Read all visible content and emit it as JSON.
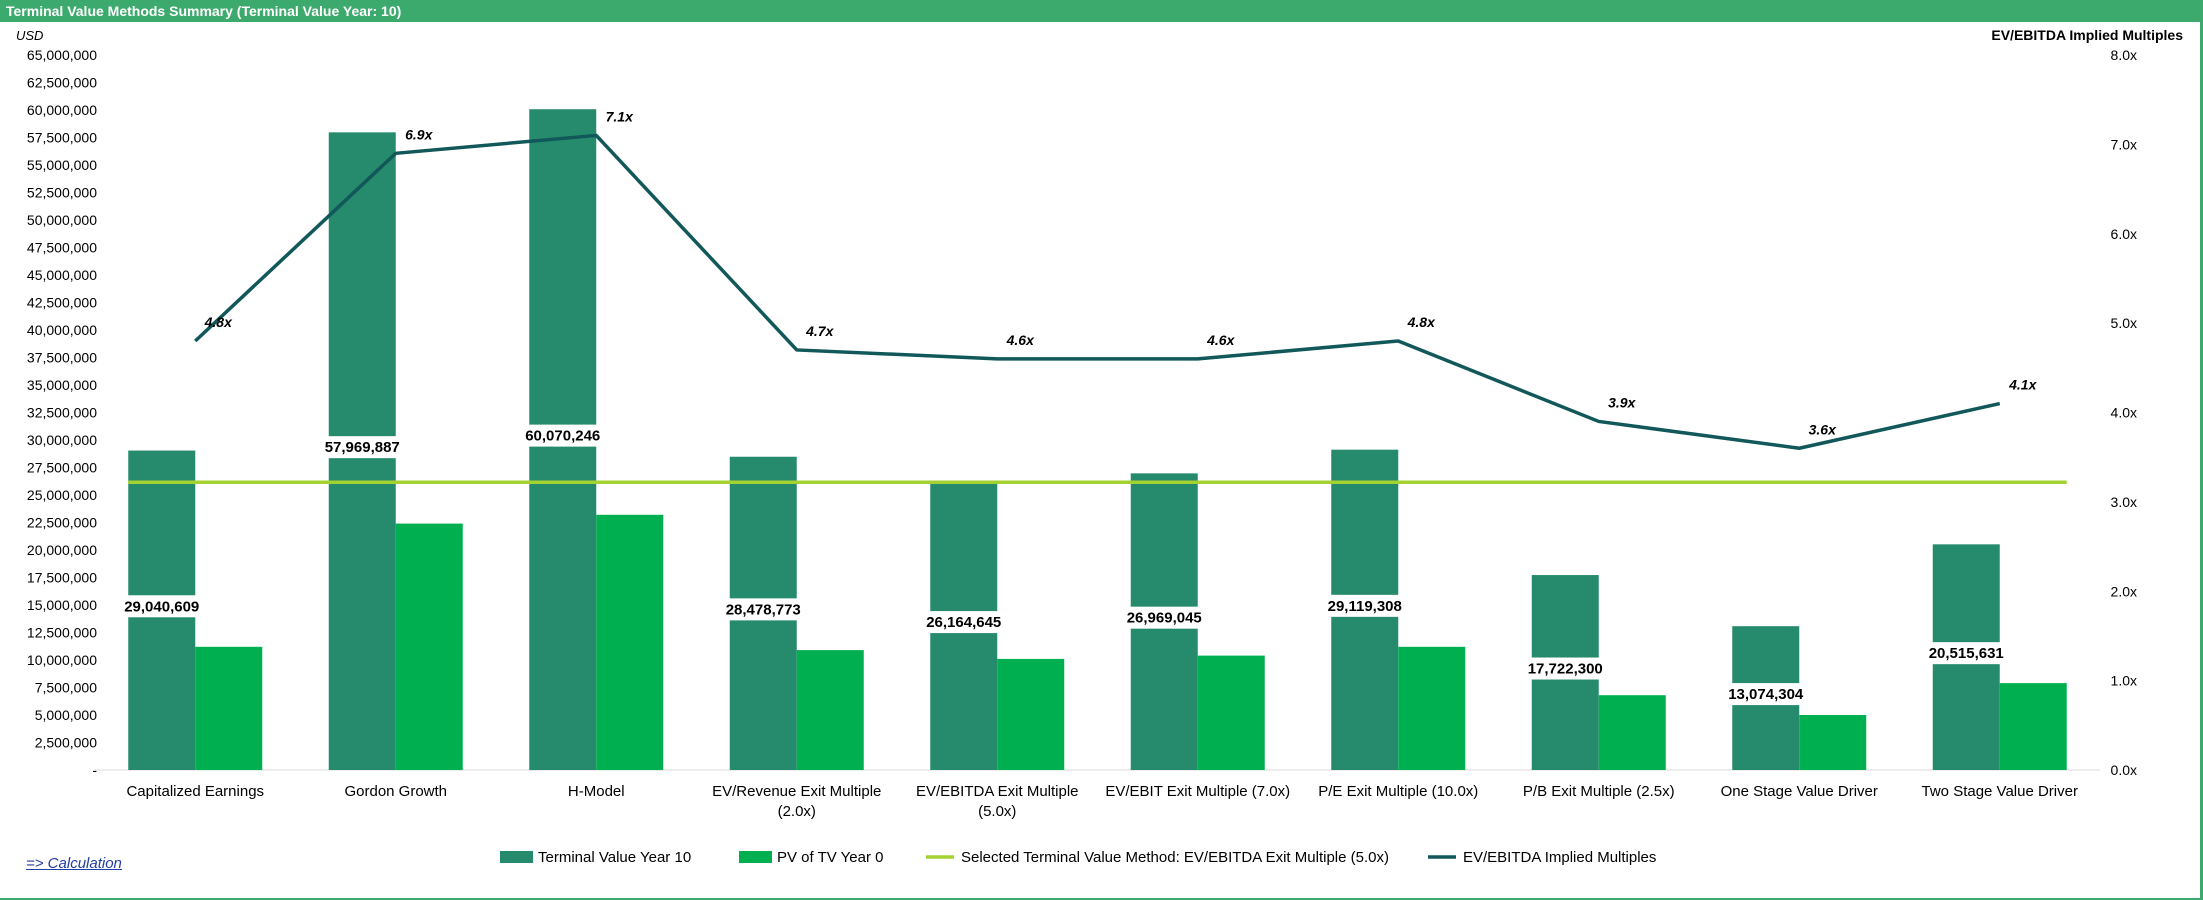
{
  "header": {
    "title": "Terminal Value Methods Summary (Terminal Value Year:  10)"
  },
  "link": {
    "label": "=> Calculation"
  },
  "colors": {
    "header_bar": "#3daa6d",
    "terminal_value": "#268b6c",
    "pv_tv": "#00b050",
    "selected_line": "#a4d233",
    "implied_line": "#12585a"
  },
  "chart_data": {
    "type": "bar",
    "title": "",
    "ylabel_left": "USD",
    "ylabel_right": "EV/EBITDA Implied Multiples",
    "ylim_left": [
      0,
      65000000
    ],
    "ylim_right": [
      0,
      8
    ],
    "grid": false,
    "legend_position": "bottom",
    "categories": [
      [
        "Capitalized Earnings"
      ],
      [
        "Gordon Growth"
      ],
      [
        "H-Model"
      ],
      [
        "EV/Revenue Exit Multiple",
        "(2.0x)"
      ],
      [
        "EV/EBITDA Exit Multiple",
        "(5.0x)"
      ],
      [
        "EV/EBIT Exit Multiple (7.0x)"
      ],
      [
        "P/E Exit Multiple (10.0x)"
      ],
      [
        "P/B Exit Multiple (2.5x)"
      ],
      [
        "One Stage Value Driver"
      ],
      [
        "Two Stage Value Driver"
      ]
    ],
    "left_ticks": [
      "-",
      "2,500,000",
      "5,000,000",
      "7,500,000",
      "10,000,000",
      "12,500,000",
      "15,000,000",
      "17,500,000",
      "20,000,000",
      "22,500,000",
      "25,000,000",
      "27,500,000",
      "30,000,000",
      "32,500,000",
      "35,000,000",
      "37,500,000",
      "40,000,000",
      "42,500,000",
      "45,000,000",
      "47,500,000",
      "50,000,000",
      "52,500,000",
      "55,000,000",
      "57,500,000",
      "60,000,000",
      "62,500,000",
      "65,000,000"
    ],
    "right_ticks": [
      "0.0x",
      "1.0x",
      "2.0x",
      "3.0x",
      "4.0x",
      "5.0x",
      "6.0x",
      "7.0x",
      "8.0x"
    ],
    "series": [
      {
        "name": "Terminal Value Year 10",
        "type": "bar",
        "axis": "left",
        "values": [
          29040609,
          57969887,
          60070246,
          28478773,
          26164645,
          26969045,
          29119308,
          17722300,
          13074304,
          20515631
        ],
        "labels": [
          "29,040,609",
          "57,969,887",
          "60,070,246",
          "28,478,773",
          "26,164,645",
          "26,969,045",
          "29,119,308",
          "17,722,300",
          "13,074,304",
          "20,515,631"
        ]
      },
      {
        "name": "PV of TV Year 0",
        "type": "bar",
        "axis": "left",
        "values": [
          11200000,
          22400000,
          23200000,
          10900000,
          10100000,
          10400000,
          11200000,
          6800000,
          5000000,
          7900000
        ]
      },
      {
        "name": "Selected Terminal Value Method:  EV/EBITDA Exit Multiple (5.0x)",
        "type": "line",
        "axis": "left",
        "value": 26164645
      },
      {
        "name": "EV/EBITDA Implied Multiples",
        "type": "line",
        "axis": "right",
        "values": [
          4.8,
          6.9,
          7.1,
          4.7,
          4.6,
          4.6,
          4.8,
          3.9,
          3.6,
          4.1
        ],
        "labels": [
          "4.8x",
          "6.9x",
          "7.1x",
          "4.7x",
          "4.6x",
          "4.6x",
          "4.8x",
          "3.9x",
          "3.6x",
          "4.1x"
        ]
      }
    ]
  }
}
